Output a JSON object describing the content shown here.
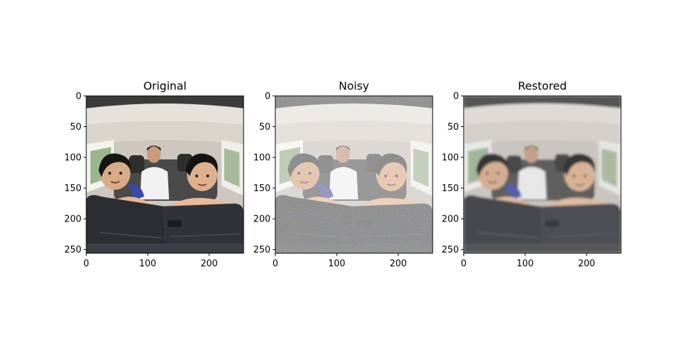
{
  "figure": {
    "panels": [
      {
        "title": "Original",
        "x_ticks": [
          "0",
          "100",
          "200"
        ],
        "y_ticks": [
          "0",
          "50",
          "100",
          "150",
          "200",
          "250"
        ],
        "image": "photo of two children and an adult seated in a car interior"
      },
      {
        "title": "Noisy",
        "x_ticks": [
          "0",
          "100",
          "200"
        ],
        "y_ticks": [
          "0",
          "50",
          "100",
          "150",
          "200",
          "250"
        ],
        "image": "same photo with heavy colored noise"
      },
      {
        "title": "Restored",
        "x_ticks": [
          "0",
          "100",
          "200"
        ],
        "y_ticks": [
          "0",
          "50",
          "100",
          "150",
          "200",
          "250"
        ],
        "image": "same photo after denoising, smoothed"
      }
    ],
    "axis_range": {
      "x": [
        0,
        256
      ],
      "y": [
        256,
        0
      ]
    },
    "x_tick_values": [
      0,
      100,
      200
    ],
    "y_tick_values": [
      0,
      50,
      100,
      150,
      200,
      250
    ]
  }
}
